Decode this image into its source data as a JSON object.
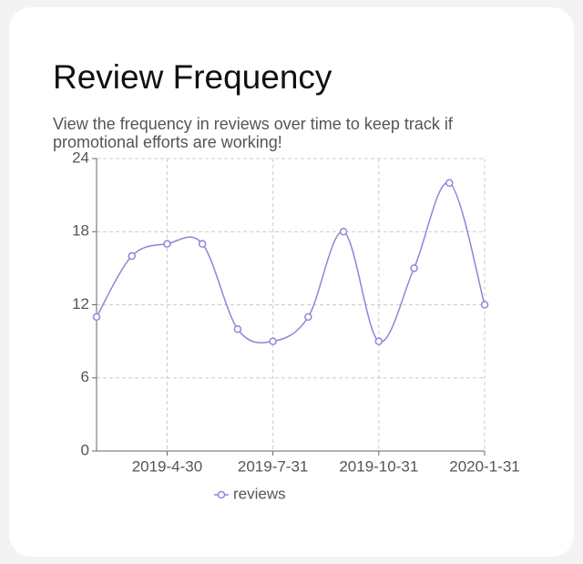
{
  "chart_data": {
    "type": "line",
    "title": "Review Frequency",
    "subtitle": "View the frequency in reviews over time to keep track if promotional efforts are working!",
    "categories": [
      null,
      null,
      "2019-4-30",
      null,
      null,
      "2019-7-31",
      null,
      null,
      "2019-10-31",
      null,
      null,
      "2020-1-31"
    ],
    "series": [
      {
        "name": "reviews",
        "color": "#8c86d6",
        "values": [
          11,
          16,
          17,
          17,
          10,
          9,
          11,
          18,
          9,
          15,
          22,
          12
        ]
      }
    ],
    "ylim": [
      0,
      24
    ],
    "yticks": [
      0,
      6,
      12,
      18,
      24
    ],
    "grid": true,
    "smooth": true,
    "legend": "bottom"
  }
}
